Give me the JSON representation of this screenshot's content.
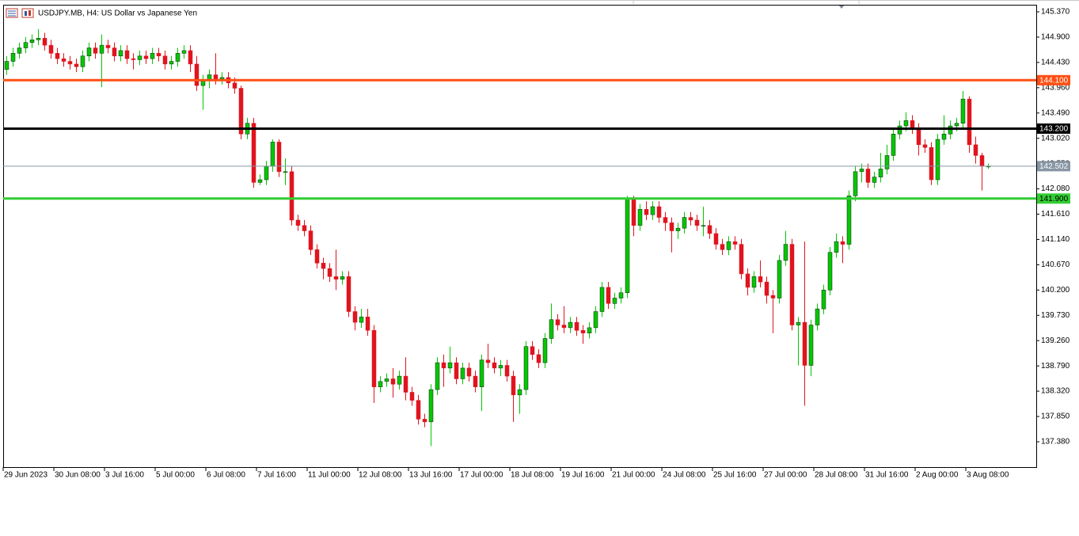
{
  "chart_data": {
    "type": "candlestick",
    "title": "USDJPY.MB, H4:  US Dollar vs Japanese Yen",
    "up_color": "#00c800",
    "down_color": "#e0141e",
    "x_labels": [
      "29 Jun 2023",
      "30 Jun 08:00",
      "3 Jul 16:00",
      "5 Jul 00:00",
      "6 Jul 08:00",
      "7 Jul 16:00",
      "11 Jul 00:00",
      "12 Jul 08:00",
      "13 Jul 16:00",
      "17 Jul 00:00",
      "18 Jul 08:00",
      "19 Jul 16:00",
      "21 Jul 00:00",
      "24 Jul 08:00",
      "25 Jul 16:00",
      "27 Jul 00:00",
      "28 Jul 08:00",
      "31 Jul 16:00",
      "2 Aug 00:00",
      "3 Aug 08:00"
    ],
    "ylim": [
      136.909,
      145.502
    ],
    "yticks": [
      {
        "value": 145.37,
        "label": "145.370"
      },
      {
        "value": 144.9,
        "label": "144.900"
      },
      {
        "value": 144.43,
        "label": "144.430"
      },
      {
        "value": 143.96,
        "label": "143.960"
      },
      {
        "value": 143.49,
        "label": "143.490"
      },
      {
        "value": 143.02,
        "label": "143.020"
      },
      {
        "value": 142.55,
        "label": "142.550"
      },
      {
        "value": 142.08,
        "label": "142.080"
      },
      {
        "value": 141.61,
        "label": "141.610"
      },
      {
        "value": 141.14,
        "label": "141.140"
      },
      {
        "value": 140.67,
        "label": "140.670"
      },
      {
        "value": 140.2,
        "label": "140.200"
      },
      {
        "value": 139.73,
        "label": "139.730"
      },
      {
        "value": 139.26,
        "label": "139.260"
      },
      {
        "value": 138.79,
        "label": "138.790"
      },
      {
        "value": 138.32,
        "label": "138.320"
      },
      {
        "value": 137.85,
        "label": "137.850"
      },
      {
        "value": 137.38,
        "label": "137.380"
      }
    ],
    "hlines": [
      {
        "value": 144.1,
        "label": "144.100",
        "color": "#ff4f12",
        "text_color": "#ffffff"
      },
      {
        "value": 143.2,
        "label": "143.200",
        "color": "#000000",
        "text_color": "#ffffff"
      },
      {
        "value": 141.9,
        "label": "141.900",
        "color": "#32cd32",
        "text_color": "#000000"
      }
    ],
    "current": {
      "value": 142.502,
      "label": "142.502",
      "color": "#8796a5",
      "text_color": "#ffffff"
    },
    "open": [
      144.3,
      144.45,
      144.6,
      144.7,
      144.8,
      144.85,
      144.88,
      144.75,
      144.6,
      144.5,
      144.45,
      144.4,
      144.35,
      144.55,
      144.7,
      144.6,
      144.75,
      144.7,
      144.55,
      144.65,
      144.5,
      144.48,
      144.55,
      144.5,
      144.6,
      144.55,
      144.4,
      144.45,
      144.6,
      144.65,
      144.4,
      144.0,
      144.1,
      144.2,
      144.12,
      144.15,
      144.05,
      143.95,
      143.1,
      143.3,
      142.2,
      142.25,
      142.5,
      142.95,
      142.4,
      142.4,
      141.5,
      141.4,
      141.3,
      140.95,
      140.7,
      140.6,
      140.45,
      140.4,
      140.45,
      139.8,
      139.6,
      139.7,
      139.45,
      138.4,
      138.5,
      138.55,
      138.45,
      138.6,
      138.3,
      138.15,
      137.8,
      137.75,
      138.35,
      138.85,
      138.75,
      138.85,
      138.55,
      138.75,
      138.6,
      138.4,
      138.9,
      138.85,
      138.75,
      138.8,
      138.6,
      138.25,
      138.35,
      139.15,
      139.0,
      138.85,
      139.3,
      139.65,
      139.55,
      139.5,
      139.6,
      139.45,
      139.4,
      139.5,
      139.8,
      140.25,
      139.95,
      140.05,
      140.15,
      141.9,
      141.4,
      141.7,
      141.6,
      141.75,
      141.55,
      141.45,
      141.3,
      141.35,
      141.55,
      141.5,
      141.4,
      141.4,
      141.25,
      141.05,
      140.95,
      141.1,
      141.05,
      140.5,
      140.25,
      140.45,
      140.35,
      140.1,
      140.05,
      140.75,
      141.05,
      139.55,
      139.6,
      138.8,
      139.55,
      139.85,
      140.2,
      140.9,
      141.1,
      141.05,
      141.95,
      142.4,
      142.45,
      142.2,
      142.3,
      142.45,
      142.7,
      143.1,
      143.25,
      143.35,
      143.2,
      142.9,
      142.85,
      142.25,
      143.0,
      143.1,
      143.25,
      143.3,
      143.75,
      142.9,
      142.7,
      142.5
    ],
    "high": [
      144.55,
      144.7,
      144.8,
      144.9,
      144.95,
      145.05,
      144.98,
      144.85,
      144.7,
      144.6,
      144.55,
      144.5,
      144.65,
      144.8,
      144.8,
      144.95,
      144.85,
      144.8,
      144.75,
      144.75,
      144.6,
      144.65,
      144.65,
      144.7,
      144.7,
      144.65,
      144.55,
      144.7,
      144.75,
      144.75,
      144.55,
      144.2,
      144.3,
      144.6,
      144.25,
      144.25,
      144.15,
      144.0,
      143.4,
      143.4,
      142.35,
      142.6,
      143.0,
      143.0,
      142.65,
      142.5,
      141.6,
      141.5,
      141.4,
      141.05,
      140.8,
      140.7,
      140.95,
      140.55,
      140.55,
      139.9,
      139.85,
      139.85,
      139.55,
      138.6,
      138.65,
      138.75,
      138.7,
      138.95,
      138.4,
      138.25,
      137.9,
      138.45,
      138.95,
      139.0,
      139.15,
      138.95,
      138.85,
      138.85,
      138.7,
      139.0,
      139.2,
      138.95,
      138.9,
      138.9,
      138.7,
      138.45,
      139.25,
      139.25,
      139.1,
      139.4,
      139.95,
      139.75,
      139.9,
      139.7,
      139.7,
      139.55,
      139.6,
      139.9,
      140.35,
      140.35,
      140.15,
      140.25,
      141.95,
      141.95,
      141.8,
      141.85,
      141.85,
      141.85,
      141.65,
      141.55,
      141.45,
      141.65,
      141.65,
      141.6,
      141.75,
      141.5,
      141.35,
      141.15,
      141.2,
      141.2,
      141.15,
      140.6,
      140.55,
      140.75,
      140.45,
      140.2,
      140.85,
      141.3,
      141.15,
      139.7,
      141.1,
      139.65,
      139.95,
      140.3,
      141.0,
      141.25,
      141.2,
      142.05,
      142.5,
      142.55,
      142.55,
      142.4,
      142.75,
      142.9,
      143.2,
      143.35,
      143.5,
      143.45,
      143.3,
      143.0,
      142.95,
      143.1,
      143.45,
      143.35,
      143.4,
      143.9,
      143.8,
      143.05,
      142.75,
      142.55
    ],
    "low": [
      144.2,
      144.35,
      144.5,
      144.6,
      144.7,
      144.75,
      144.65,
      144.5,
      144.4,
      144.35,
      144.3,
      144.25,
      144.25,
      144.45,
      144.5,
      143.97,
      144.6,
      144.45,
      144.45,
      144.4,
      144.3,
      144.38,
      144.4,
      144.4,
      144.45,
      144.3,
      144.3,
      144.35,
      144.5,
      144.25,
      143.9,
      143.55,
      143.95,
      144.02,
      144.02,
      143.95,
      143.85,
      143.0,
      143.0,
      142.1,
      142.15,
      142.15,
      142.4,
      142.3,
      142.15,
      141.4,
      141.3,
      141.2,
      140.85,
      140.6,
      140.4,
      140.35,
      140.2,
      140.3,
      139.7,
      139.45,
      139.5,
      139.35,
      138.1,
      138.3,
      138.4,
      138.2,
      138.35,
      138.15,
      138.05,
      137.7,
      137.65,
      137.3,
      138.25,
      138.4,
      138.65,
      138.45,
      138.45,
      138.5,
      138.3,
      137.95,
      138.75,
      138.65,
      138.6,
      138.5,
      137.75,
      137.9,
      138.25,
      138.9,
      138.75,
      138.75,
      139.2,
      139.45,
      139.4,
      139.4,
      139.35,
      139.2,
      139.3,
      139.4,
      139.7,
      139.85,
      139.85,
      139.95,
      140.05,
      141.2,
      141.3,
      141.5,
      141.5,
      141.45,
      141.3,
      140.9,
      141.15,
      141.25,
      141.4,
      141.3,
      141.2,
      141.15,
      140.95,
      140.85,
      140.85,
      140.95,
      140.4,
      140.1,
      140.15,
      140.25,
      139.95,
      139.4,
      139.95,
      140.65,
      139.45,
      138.8,
      138.05,
      138.6,
      139.45,
      139.75,
      140.1,
      140.8,
      140.7,
      140.95,
      141.85,
      142.2,
      142.1,
      142.1,
      142.2,
      142.35,
      142.6,
      143.0,
      143.15,
      143.1,
      142.7,
      142.75,
      142.15,
      142.15,
      142.9,
      143.0,
      143.15,
      143.2,
      142.75,
      142.55,
      142.05,
      142.45
    ],
    "close": [
      144.45,
      144.6,
      144.7,
      144.8,
      144.85,
      144.88,
      144.75,
      144.6,
      144.5,
      144.45,
      144.4,
      144.35,
      144.55,
      144.7,
      144.6,
      144.75,
      144.7,
      144.55,
      144.65,
      144.5,
      144.48,
      144.55,
      144.5,
      144.6,
      144.55,
      144.4,
      144.45,
      144.6,
      144.65,
      144.4,
      144.0,
      144.1,
      144.2,
      144.12,
      144.15,
      144.05,
      143.95,
      143.1,
      143.3,
      142.2,
      142.25,
      142.5,
      142.95,
      142.4,
      142.4,
      141.5,
      141.4,
      141.3,
      140.95,
      140.7,
      140.6,
      140.45,
      140.4,
      140.45,
      139.8,
      139.6,
      139.7,
      139.45,
      138.4,
      138.5,
      138.55,
      138.45,
      138.6,
      138.3,
      138.15,
      137.8,
      137.75,
      138.35,
      138.85,
      138.75,
      138.85,
      138.55,
      138.75,
      138.6,
      138.4,
      138.9,
      138.85,
      138.75,
      138.8,
      138.6,
      138.25,
      138.35,
      139.15,
      139.0,
      138.85,
      139.3,
      139.65,
      139.55,
      139.5,
      139.6,
      139.45,
      139.4,
      139.5,
      139.8,
      140.25,
      139.95,
      140.05,
      140.15,
      141.9,
      141.4,
      141.7,
      141.6,
      141.75,
      141.55,
      141.45,
      141.3,
      141.35,
      141.55,
      141.5,
      141.4,
      141.4,
      141.25,
      141.05,
      140.95,
      141.1,
      141.05,
      140.5,
      140.25,
      140.45,
      140.35,
      140.1,
      140.05,
      140.75,
      141.05,
      139.55,
      139.6,
      138.8,
      139.55,
      139.85,
      140.2,
      140.9,
      141.1,
      141.05,
      141.95,
      142.4,
      142.45,
      142.2,
      142.3,
      142.45,
      142.7,
      143.1,
      143.25,
      143.35,
      143.2,
      142.9,
      142.85,
      142.25,
      143.0,
      143.1,
      143.25,
      143.3,
      143.75,
      142.9,
      142.7,
      142.5,
      142.502
    ]
  }
}
